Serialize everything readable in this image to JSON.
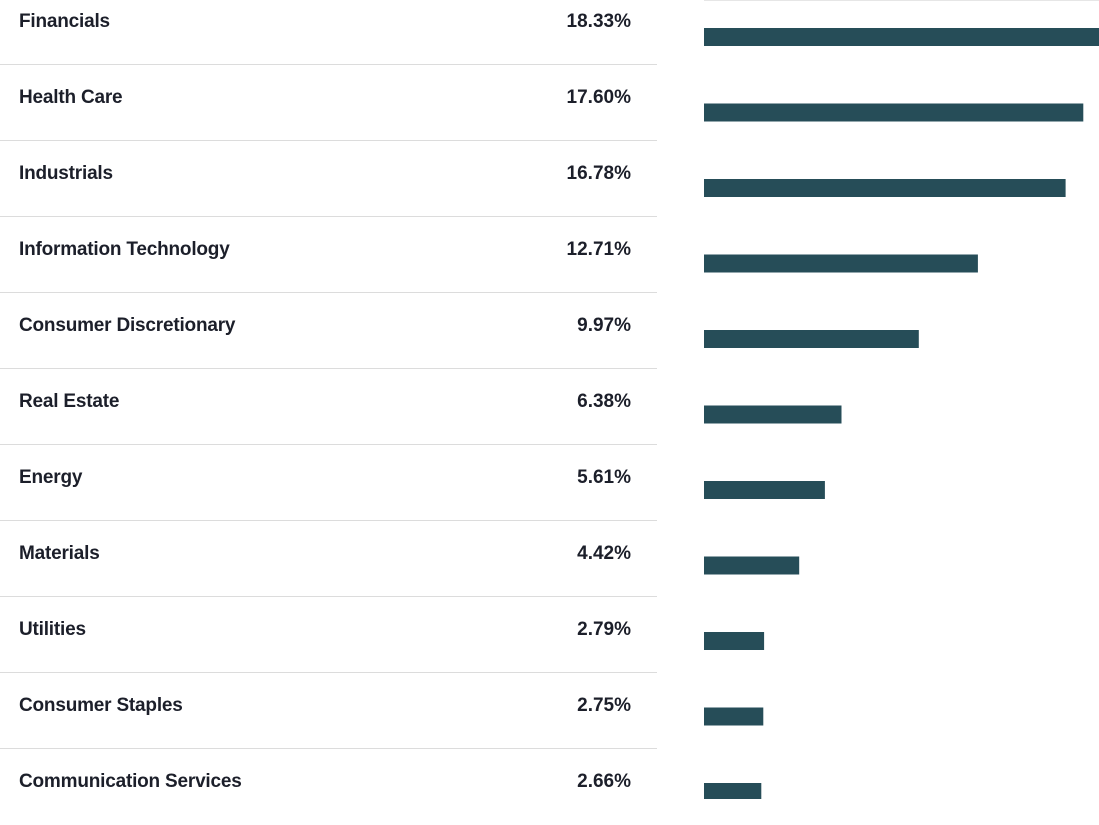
{
  "chart_data": {
    "type": "bar",
    "orientation": "horizontal",
    "categories": [
      "Financials",
      "Health Care",
      "Industrials",
      "Information Technology",
      "Consumer Discretionary",
      "Real Estate",
      "Energy",
      "Materials",
      "Utilities",
      "Consumer Staples",
      "Communication Services"
    ],
    "values": [
      18.33,
      17.6,
      16.78,
      12.71,
      9.97,
      6.38,
      5.61,
      4.42,
      2.79,
      2.75,
      2.66
    ],
    "labels": [
      "18.33%",
      "17.60%",
      "16.78%",
      "12.71%",
      "9.97%",
      "6.38%",
      "5.61%",
      "4.42%",
      "2.79%",
      "2.75%",
      "2.66%"
    ],
    "xlim": [
      0,
      18.33
    ],
    "bar_color": "#264d58",
    "title": "",
    "xlabel": "",
    "ylabel": ""
  }
}
